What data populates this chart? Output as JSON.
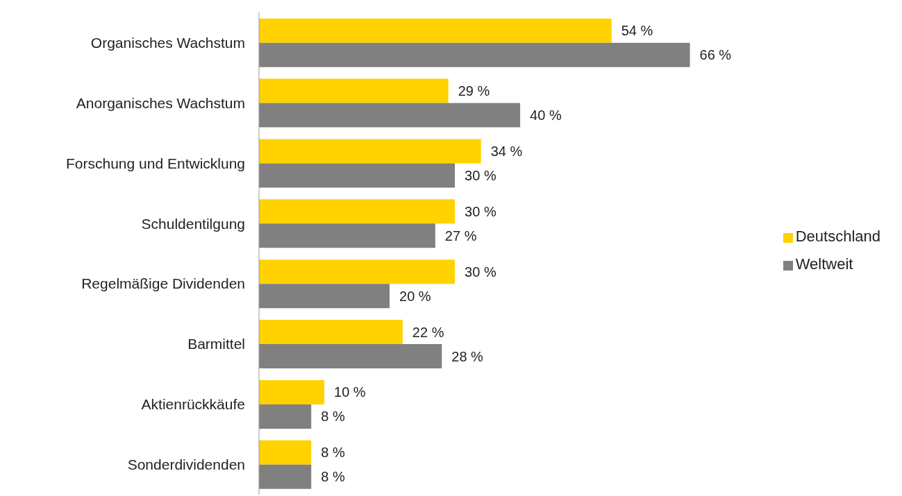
{
  "chart_data": {
    "type": "bar",
    "orientation": "horizontal",
    "categories": [
      "Organisches Wachstum",
      "Anorganisches Wachstum",
      "Forschung und Entwicklung",
      "Schuldentilgung",
      "Regelmäßige Dividenden",
      "Barmittel",
      "Aktienrückkäufe",
      "Sonderdividenden"
    ],
    "series": [
      {
        "name": "Deutschland",
        "color": "#ffd200",
        "values": [
          54,
          29,
          34,
          30,
          30,
          22,
          10,
          8
        ],
        "value_labels": [
          "54 %",
          "29 %",
          "34 %",
          "30 %",
          "30 %",
          "22 %",
          "10 %",
          "8 %"
        ]
      },
      {
        "name": "Weltweit",
        "color": "#808080",
        "values": [
          66,
          40,
          30,
          27,
          20,
          28,
          8,
          8
        ],
        "value_labels": [
          "66 %",
          "40 %",
          "30 %",
          "27 %",
          "20 %",
          "28 %",
          "8 %",
          "8 %"
        ]
      }
    ],
    "grid": false,
    "legend": "right",
    "tick_labels": "y"
  }
}
